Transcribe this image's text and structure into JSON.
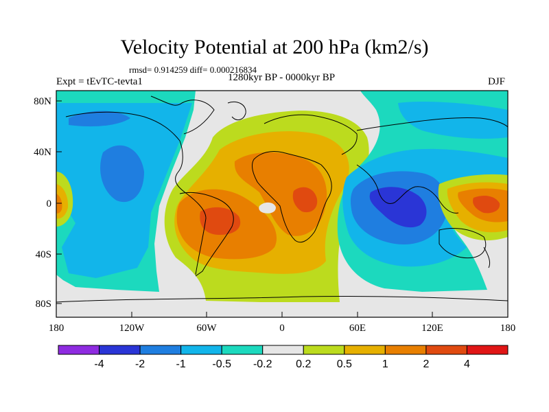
{
  "title": "Velocity Potential at 200 hPa (km2/s)",
  "stats": "rmsd= 0.914259 diff= 0.000216834",
  "period": "1280kyr BP - 0000kyr BP",
  "experiment": "Expt = tEvTC-tevta1",
  "season": "DJF",
  "axes": {
    "x_ticks": [
      "180",
      "120W",
      "60W",
      "0",
      "60E",
      "120E",
      "180"
    ],
    "y_ticks": [
      "80N",
      "40N",
      "0",
      "40S",
      "80S"
    ]
  },
  "colorbar": {
    "colors": [
      "#8e2be0",
      "#2a35d6",
      "#1f7ee0",
      "#12b5ea",
      "#1cd9be",
      "#e6e6e6",
      "#bcdb1e",
      "#e6b000",
      "#e87f00",
      "#e04a10",
      "#e01616"
    ],
    "labels": [
      "-4",
      "-2",
      "-1",
      "-0.5",
      "-0.2",
      "0.2",
      "0.5",
      "1",
      "2",
      "4"
    ]
  }
}
